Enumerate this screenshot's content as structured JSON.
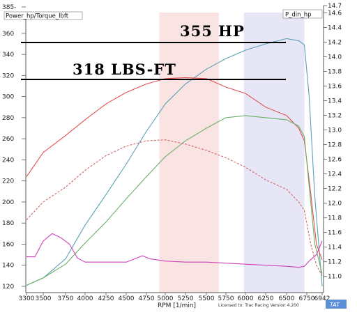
{
  "chart_data": {
    "type": "line",
    "left_axis_title": "Power_hp/Torque_lbft",
    "right_axis_title": "P_din_hp",
    "xlabel": "RPM  [1/min]",
    "credit": "Licensed to: Trac Racing  Version 4.200",
    "logo": "TAT",
    "annotations": [
      "355 HP",
      "318 LBS-FT"
    ],
    "x_ticks": [
      "3300",
      "3500",
      "3750",
      "4000",
      "4250",
      "4500",
      "4750",
      "5000",
      "5250",
      "5500",
      "5750",
      "6000",
      "6250",
      "6500",
      "6750",
      "6942"
    ],
    "y_left_ticks": [
      "385-",
      "360",
      "340",
      "320",
      "300",
      "280",
      "260",
      "240",
      "220",
      "200",
      "180",
      "160",
      "140",
      "120"
    ],
    "y_right_ticks": [
      "14.7",
      "14.6",
      "14.4",
      "14.2",
      "14.0",
      "13.8",
      "13.6",
      "13.4",
      "13.2",
      "13.0",
      "12.8",
      "12.6",
      "12.4",
      "12.2",
      "12.0",
      "11.8",
      "11.6",
      "11.4",
      "11.2",
      "11.0"
    ],
    "xlim": [
      3300,
      6942
    ],
    "ylim_left": [
      118,
      385
    ],
    "ylim_right": [
      10.95,
      14.7
    ],
    "shaded_bands": [
      {
        "from": 4920,
        "to": 5660,
        "color": "#f9e3e3"
      },
      {
        "from": 5980,
        "to": 6720,
        "color": "#e6e6f6"
      }
    ],
    "series": [
      {
        "name": "",
        "color": "#5aa0b4",
        "style": "solid",
        "axis": "left",
        "points": [
          [
            3300,
            121
          ],
          [
            3500,
            128
          ],
          [
            3750,
            146
          ],
          [
            4000,
            178
          ],
          [
            4250,
            207
          ],
          [
            4500,
            236
          ],
          [
            4750,
            267
          ],
          [
            5000,
            293
          ],
          [
            5250,
            312
          ],
          [
            5500,
            326
          ],
          [
            5750,
            336
          ],
          [
            6000,
            344
          ],
          [
            6250,
            350
          ],
          [
            6500,
            355
          ],
          [
            6650,
            353
          ],
          [
            6720,
            349
          ],
          [
            6780,
            300
          ],
          [
            6850,
            205
          ],
          [
            6942,
            120
          ]
        ]
      },
      {
        "name": "",
        "color": "#e05050",
        "style": "solid",
        "axis": "left",
        "points": [
          [
            3300,
            224
          ],
          [
            3500,
            247
          ],
          [
            3750,
            263
          ],
          [
            4000,
            278
          ],
          [
            4250,
            293
          ],
          [
            4500,
            304
          ],
          [
            4750,
            312
          ],
          [
            5000,
            317
          ],
          [
            5250,
            318
          ],
          [
            5500,
            317
          ],
          [
            5750,
            309
          ],
          [
            6000,
            303
          ],
          [
            6250,
            290
          ],
          [
            6500,
            282
          ],
          [
            6650,
            270
          ],
          [
            6720,
            258
          ],
          [
            6800,
            208
          ],
          [
            6870,
            160
          ],
          [
            6942,
            145
          ]
        ]
      },
      {
        "name": "",
        "color": "#6ab06a",
        "style": "solid",
        "axis": "left",
        "points": [
          [
            3300,
            121
          ],
          [
            3500,
            128
          ],
          [
            3750,
            141
          ],
          [
            4000,
            161
          ],
          [
            4250,
            181
          ],
          [
            4500,
            203
          ],
          [
            4750,
            224
          ],
          [
            5000,
            243
          ],
          [
            5250,
            258
          ],
          [
            5500,
            270
          ],
          [
            5750,
            280
          ],
          [
            6000,
            282
          ],
          [
            6250,
            280
          ],
          [
            6500,
            278
          ],
          [
            6650,
            272
          ],
          [
            6720,
            262
          ],
          [
            6780,
            215
          ],
          [
            6850,
            160
          ],
          [
            6942,
            132
          ]
        ]
      },
      {
        "name": "",
        "color": "#d06666",
        "style": "dashed",
        "axis": "left",
        "points": [
          [
            3300,
            183
          ],
          [
            3500,
            200
          ],
          [
            3750,
            214
          ],
          [
            4000,
            230
          ],
          [
            4250,
            244
          ],
          [
            4500,
            253
          ],
          [
            4750,
            258
          ],
          [
            5000,
            259
          ],
          [
            5250,
            255
          ],
          [
            5500,
            249
          ],
          [
            5750,
            242
          ],
          [
            6000,
            233
          ],
          [
            6250,
            221
          ],
          [
            6500,
            212
          ],
          [
            6650,
            200
          ],
          [
            6720,
            192
          ],
          [
            6800,
            160
          ],
          [
            6870,
            140
          ],
          [
            6942,
            130
          ]
        ]
      },
      {
        "name": "",
        "color": "#d040b8",
        "style": "solid",
        "axis": "left",
        "points": [
          [
            3300,
            148
          ],
          [
            3400,
            148
          ],
          [
            3500,
            163
          ],
          [
            3600,
            170
          ],
          [
            3700,
            166
          ],
          [
            3800,
            160
          ],
          [
            3900,
            147
          ],
          [
            4000,
            143
          ],
          [
            4250,
            143
          ],
          [
            4500,
            143
          ],
          [
            4700,
            149
          ],
          [
            4800,
            146
          ],
          [
            4900,
            145
          ],
          [
            5000,
            144
          ],
          [
            5250,
            143
          ],
          [
            5500,
            143
          ],
          [
            5750,
            142
          ],
          [
            6000,
            141
          ],
          [
            6250,
            140
          ],
          [
            6500,
            139
          ],
          [
            6650,
            138
          ],
          [
            6720,
            139
          ],
          [
            6780,
            144
          ],
          [
            6870,
            150
          ],
          [
            6942,
            163
          ]
        ]
      }
    ]
  }
}
